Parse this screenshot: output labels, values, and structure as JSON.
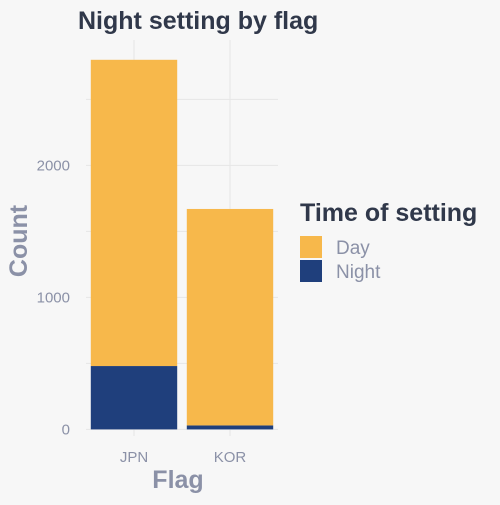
{
  "chart_data": {
    "type": "bar",
    "stacked": true,
    "title": "Night setting by flag",
    "xlabel": "Flag",
    "ylabel": "Count",
    "categories": [
      "JPN",
      "KOR"
    ],
    "series": [
      {
        "name": "Night",
        "color": "#1f3f7c",
        "values": [
          480,
          30
        ]
      },
      {
        "name": "Day",
        "color": "#f7b84b",
        "values": [
          2320,
          1640
        ]
      }
    ],
    "ylim": [
      -50,
      2950
    ],
    "yticks": [
      0,
      1000,
      2000
    ],
    "ytick_labels": [
      "0",
      "1000",
      "2000"
    ],
    "grid": true,
    "legend": {
      "title": "Time of setting",
      "position": "right",
      "entries": [
        {
          "label": "Day",
          "color": "#f7b84b"
        },
        {
          "label": "Night",
          "color": "#1f3f7c"
        }
      ]
    }
  }
}
